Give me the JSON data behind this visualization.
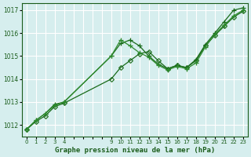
{
  "bg_color": "#d6eeee",
  "grid_color": "#ffffff",
  "line_colors": [
    "#1a6b1a",
    "#2e8b2e",
    "#1a6b1a"
  ],
  "title": "Graphe pression niveau de la mer (hPa)",
  "title_color": "#1a5c1a",
  "ylabel_vals": [
    1012,
    1013,
    1014,
    1015,
    1016,
    1017
  ],
  "xtick_labels": [
    "0",
    "1",
    "2",
    "3",
    "4",
    "",
    "",
    "",
    "",
    "9",
    "10",
    "11",
    "12",
    "13",
    "14",
    "15",
    "16",
    "17",
    "18",
    "19",
    "20",
    "21",
    "22",
    "23"
  ],
  "xtick_positions": [
    0,
    1,
    2,
    3,
    4,
    5,
    6,
    7,
    8,
    9,
    10,
    11,
    12,
    13,
    14,
    15,
    16,
    17,
    18,
    19,
    20,
    21,
    22,
    23
  ],
  "series1_x": [
    0,
    1,
    2,
    3,
    4,
    9,
    10,
    11,
    12,
    13,
    14,
    15,
    16,
    17,
    18,
    19,
    20,
    21,
    22,
    23
  ],
  "series1_y": [
    1011.8,
    1012.2,
    1012.5,
    1012.9,
    1013.0,
    1015.0,
    1015.55,
    1015.7,
    1015.45,
    1015.0,
    1014.65,
    1014.45,
    1014.6,
    1014.5,
    1014.85,
    1015.5,
    1016.0,
    1016.5,
    1017.0,
    1017.1
  ],
  "series2_x": [
    0,
    1,
    2,
    3,
    4,
    9,
    10,
    11,
    12,
    13,
    14,
    15,
    16,
    17,
    18,
    19,
    20,
    21,
    22,
    23
  ],
  "series2_y": [
    1011.8,
    1012.2,
    1012.5,
    1012.85,
    1013.0,
    1015.0,
    1015.7,
    1015.45,
    1015.15,
    1014.95,
    1014.6,
    1014.4,
    1014.55,
    1014.45,
    1014.7,
    1015.4,
    1015.95,
    1016.35,
    1016.75,
    1017.0
  ],
  "series3_x": [
    0,
    1,
    2,
    3,
    4,
    9,
    10,
    11,
    12,
    13,
    14,
    15,
    16,
    17,
    18,
    19,
    20,
    21,
    22,
    23
  ],
  "series3_y": [
    1011.8,
    1012.15,
    1012.4,
    1012.8,
    1012.95,
    1014.0,
    1014.5,
    1014.8,
    1015.1,
    1015.2,
    1014.8,
    1014.45,
    1014.6,
    1014.5,
    1014.8,
    1015.45,
    1015.9,
    1016.3,
    1016.7,
    1016.95
  ],
  "ylim": [
    1011.5,
    1017.3
  ],
  "xlim": [
    -0.5,
    23.5
  ]
}
